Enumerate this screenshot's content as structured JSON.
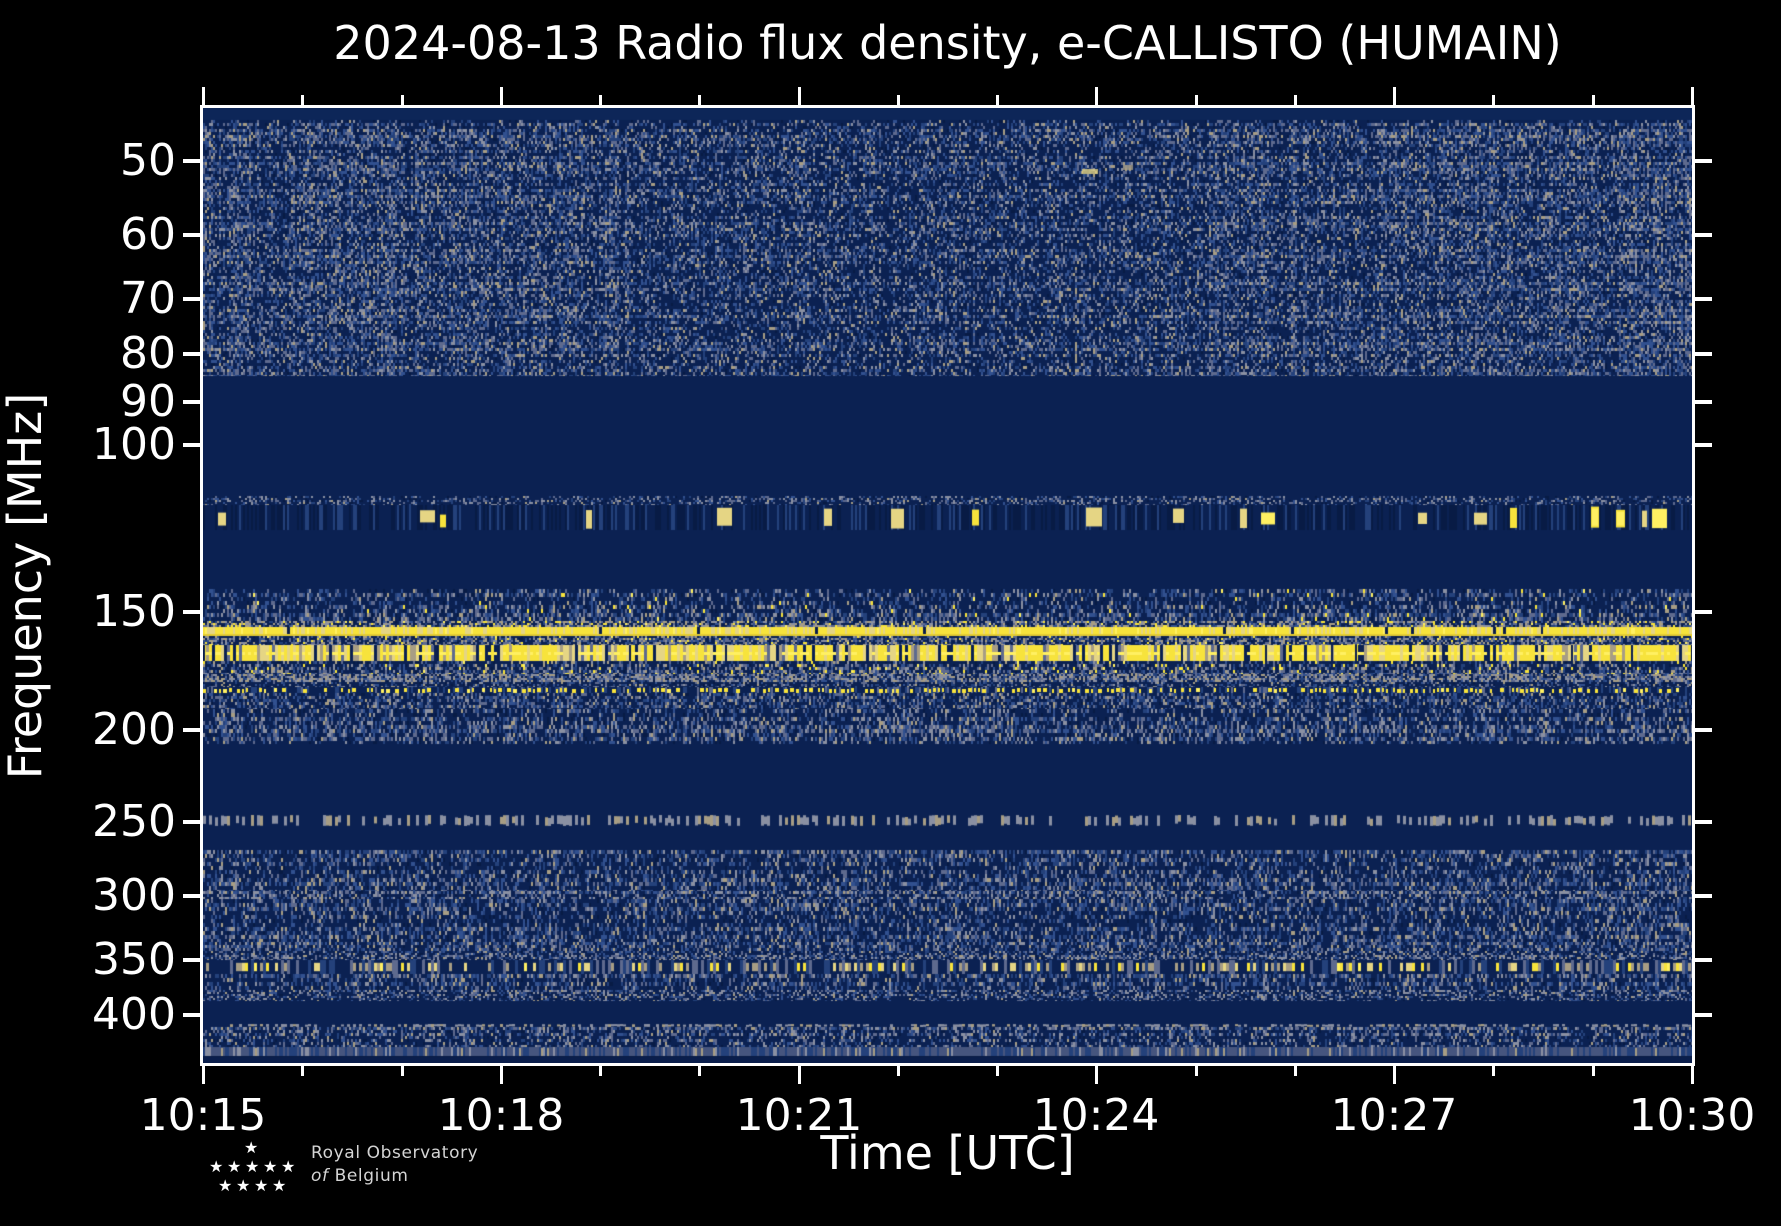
{
  "page": {
    "background": "#000000",
    "foreground": "#FFFFFF"
  },
  "title": "2024-08-13 Radio flux density, e-CALLISTO (HUMAIN)",
  "axes": {
    "x": {
      "label": "Time [UTC]",
      "range_minutes": [
        0,
        15
      ],
      "minor_step_minutes": 1,
      "major_ticks": [
        {
          "label": "10:15",
          "minute": 0
        },
        {
          "label": "10:18",
          "minute": 3
        },
        {
          "label": "10:21",
          "minute": 6
        },
        {
          "label": "10:24",
          "minute": 9
        },
        {
          "label": "10:27",
          "minute": 12
        },
        {
          "label": "10:30",
          "minute": 15
        }
      ]
    },
    "y": {
      "label": "Frequency [MHz]",
      "scale": "log",
      "range_mhz": [
        44,
        450
      ],
      "major_ticks": [
        50,
        60,
        70,
        80,
        90,
        100,
        150,
        200,
        250,
        300,
        350,
        400
      ]
    }
  },
  "logo": {
    "line1": "Royal Observatory",
    "line2_italic": "of",
    "line2_rest": "Belgium"
  },
  "chart_data": {
    "type": "heatmap",
    "title": "2024-08-13 Radio flux density, e-CALLISTO (HUMAIN)",
    "x_start": "10:15",
    "x_end": "10:30",
    "duration_minutes": 15,
    "ylabel": "Frequency [MHz]",
    "xlabel": "Time [UTC]",
    "y_scale": "log",
    "y_range_mhz": [
      44,
      450
    ],
    "persistent_emission_lines_mhz": [
      156,
      167,
      182
    ],
    "interference_band_mhz": [
      [
        116,
        123
      ],
      [
        350,
        362
      ]
    ],
    "quiet_bands_mhz": [
      [
        85,
        113
      ],
      [
        207,
        246
      ],
      [
        253,
        268
      ],
      [
        389,
        409
      ]
    ],
    "palette": {
      "navy": "#0B2152",
      "navyDark": "#081B45",
      "blue1": "#24417B",
      "blue2": "#31508F",
      "slate": "#5E6A8E",
      "gray": "#8A90A2",
      "tan": "#A79D84",
      "paleYellow": "#E5D584",
      "yellow": "#F7E33C",
      "brightYellow": "#FFF062",
      "cut": "#0A1E4C"
    },
    "bands": [
      {
        "style": "solid",
        "f": [
          44,
          45.3
        ],
        "color": "#0D2658"
      },
      {
        "style": "noise",
        "f": [
          45.3,
          84.5
        ],
        "density": 0.62,
        "tanP": 0.1,
        "grayP": 0.14,
        "slateP": 0.26,
        "yellowP": 0.0,
        "cw": 2,
        "ch": 3,
        "phase": 0.0,
        "xmod": [
          {
            "t0": 0.28,
            "t1": 0.67,
            "mul": 0.82
          },
          {
            "t0": 0.82,
            "t1": 1.0,
            "mul": 1.12
          }
        ]
      },
      {
        "style": "noise",
        "f": [
          113.2,
          115.6
        ],
        "density": 0.4,
        "grayP": 0.28,
        "slateP": 0.3,
        "tanP": 0.05,
        "cw": 2,
        "ch": 2
      },
      {
        "style": "blobs",
        "f": [
          115.6,
          123
        ],
        "blobProb": 0.032
      },
      {
        "style": "noise",
        "f": [
          142,
          153.5
        ],
        "density": 0.5,
        "yellowP": 0.03,
        "tanP": 0.08,
        "grayP": 0.15,
        "slateP": 0.25,
        "cw": 2,
        "ch": 4
      },
      {
        "style": "noise",
        "f": [
          153.5,
          155.5
        ],
        "density": 0.88,
        "tanP": 0.28,
        "grayP": 0.2,
        "yellowP": 0.15,
        "slateP": 0.15,
        "cw": 2,
        "ch": 2
      },
      {
        "style": "line",
        "f": [
          155.5,
          159
        ]
      },
      {
        "style": "noise",
        "f": [
          159,
          162.5
        ],
        "density": 0.65,
        "tanP": 0.2,
        "grayP": 0.18,
        "yellowP": 0.06,
        "cw": 2,
        "ch": 2
      },
      {
        "style": "dashes",
        "f": [
          162.5,
          169
        ]
      },
      {
        "style": "noise",
        "f": [
          169,
          174.5
        ],
        "density": 0.6,
        "yellowP": 0.1,
        "tanP": 0.14,
        "grayP": 0.14,
        "cw": 2,
        "ch": 3
      },
      {
        "style": "noise",
        "f": [
          174.5,
          178
        ],
        "density": 0.82,
        "grayP": 0.32,
        "tanP": 0.22,
        "slateP": 0.2,
        "cw": 2,
        "ch": 2
      },
      {
        "style": "noise",
        "f": [
          178,
          180
        ],
        "density": 0.45,
        "cw": 2,
        "ch": 2
      },
      {
        "style": "dots",
        "f": [
          180,
          183
        ]
      },
      {
        "style": "noise",
        "f": [
          183,
          190
        ],
        "density": 0.5,
        "cw": 2,
        "ch": 3,
        "phase": 0.8
      },
      {
        "style": "noise",
        "f": [
          190,
          207
        ],
        "density": 0.58,
        "grayP": 0.2,
        "tanP": 0.1,
        "cw": 2,
        "ch": 4,
        "phase": 1.2
      },
      {
        "style": "graydash",
        "f": [
          246,
          253
        ],
        "p": 0.45
      },
      {
        "style": "noise",
        "f": [
          268,
          296
        ],
        "density": 0.5,
        "cw": 2,
        "ch": 4,
        "phase": 0.4
      },
      {
        "style": "noise",
        "f": [
          296,
          302
        ],
        "density": 0.72,
        "grayP": 0.3,
        "tanP": 0.1,
        "cw": 2,
        "ch": 3
      },
      {
        "style": "noise",
        "f": [
          302,
          335
        ],
        "density": 0.5,
        "cw": 2,
        "ch": 4,
        "phase": 2.2
      },
      {
        "style": "noise",
        "f": [
          335,
          344
        ],
        "density": 0.55,
        "cw": 2,
        "ch": 3
      },
      {
        "style": "noise",
        "f": [
          344,
          350
        ],
        "density": 0.75,
        "grayP": 0.3,
        "tanP": 0.1,
        "cw": 2,
        "ch": 2
      },
      {
        "style": "ydash",
        "f": [
          350,
          362
        ]
      },
      {
        "style": "noise",
        "f": [
          362,
          377
        ],
        "density": 0.6,
        "cw": 2,
        "ch": 4,
        "phase": 0.9
      },
      {
        "style": "noise",
        "f": [
          377,
          382
        ],
        "density": 0.75,
        "grayP": 0.3,
        "cw": 2,
        "ch": 2
      },
      {
        "style": "noise",
        "f": [
          382,
          387
        ],
        "density": 0.42,
        "grayP": 0.25,
        "cw": 2,
        "ch": 2
      },
      {
        "style": "graydash",
        "f": [
          409,
          412
        ],
        "p": 0.5
      },
      {
        "style": "noise",
        "f": [
          412,
          433
        ],
        "density": 0.55,
        "grayP": 0.24,
        "cw": 2,
        "ch": 3,
        "phase": 1.8
      },
      {
        "style": "lavender",
        "f": [
          433,
          444
        ],
        "base": "#46557E"
      },
      {
        "style": "solid",
        "f": [
          444,
          450
        ],
        "color": "#0A1E4C"
      }
    ],
    "hotspots": [
      {
        "t": 0.59,
        "f_mhz": 51,
        "w": 16,
        "color": "paleYellow"
      },
      {
        "t": 0.618,
        "f_mhz": 50.5,
        "w": 10,
        "color": "tan"
      }
    ]
  }
}
